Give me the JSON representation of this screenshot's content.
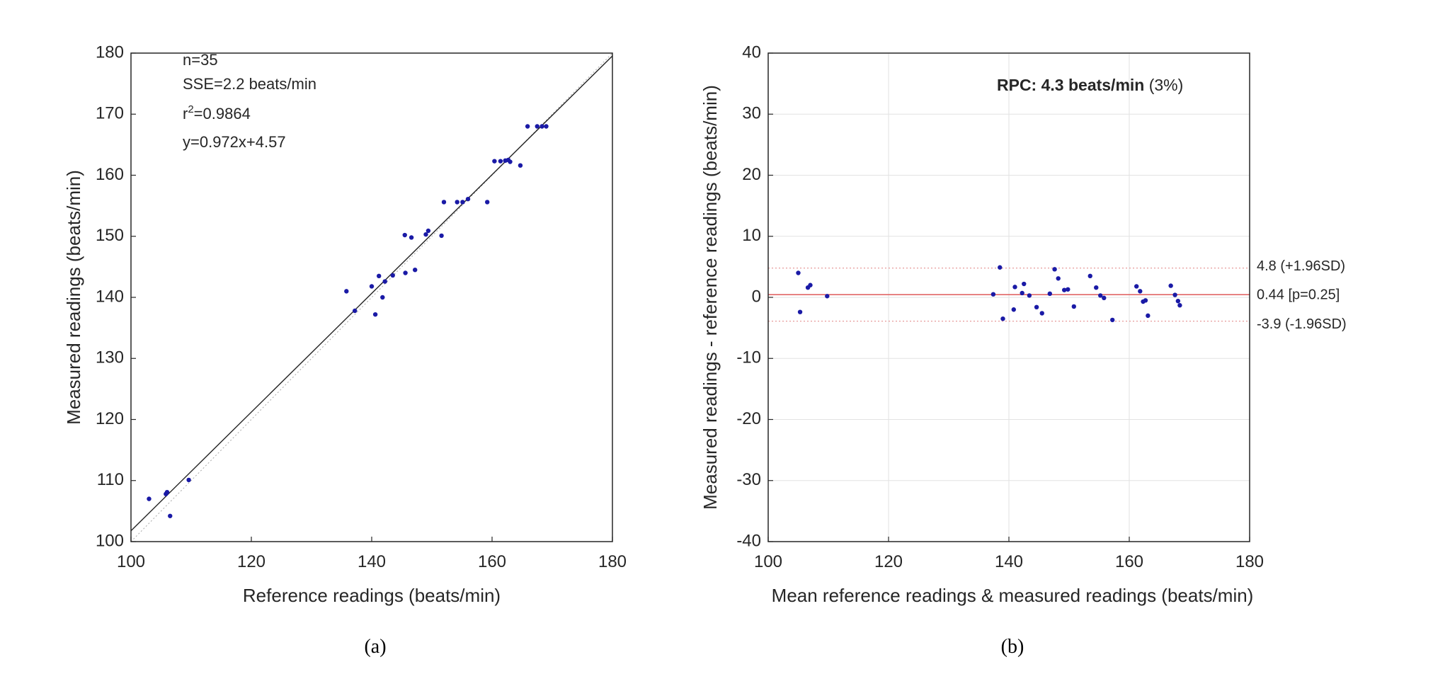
{
  "colors": {
    "points": "#1a1aa6",
    "fit_line": "#222222",
    "identity_line": "#a8a8a8",
    "mean_line": "#e06666",
    "limit_line": "#e79a9a",
    "grid": "#e2e2e2",
    "axis": "#262626"
  },
  "chart_data": [
    {
      "type": "scatter",
      "caption": "(a)",
      "xlabel": "Reference readings  (beats/min)",
      "ylabel": "Measured readings  (beats/min)",
      "xlim": [
        100,
        180
      ],
      "ylim": [
        100,
        180
      ],
      "xticks": [
        100,
        120,
        140,
        160,
        180
      ],
      "yticks": [
        100,
        110,
        120,
        130,
        140,
        150,
        160,
        170,
        180
      ],
      "grid": false,
      "stats": {
        "n": "n=35",
        "sse": "SSE=2.2 beats/min",
        "r2_prefix": "r",
        "r2_sup": "2",
        "r2_value": "=0.9864",
        "equation": "y=0.972x+4.57"
      },
      "fit": {
        "slope": 0.972,
        "intercept": 4.57
      },
      "identity_line": true,
      "points": [
        {
          "x": 103.0,
          "y": 107.0
        },
        {
          "x": 105.8,
          "y": 107.8
        },
        {
          "x": 106.0,
          "y": 108.1
        },
        {
          "x": 106.5,
          "y": 104.2
        },
        {
          "x": 109.6,
          "y": 110.1
        },
        {
          "x": 135.8,
          "y": 141.0
        },
        {
          "x": 137.2,
          "y": 137.8
        },
        {
          "x": 140.0,
          "y": 141.8
        },
        {
          "x": 140.6,
          "y": 137.2
        },
        {
          "x": 141.2,
          "y": 143.5
        },
        {
          "x": 141.8,
          "y": 140.0
        },
        {
          "x": 142.2,
          "y": 142.6
        },
        {
          "x": 143.5,
          "y": 143.6
        },
        {
          "x": 145.5,
          "y": 150.2
        },
        {
          "x": 145.6,
          "y": 144.0
        },
        {
          "x": 146.6,
          "y": 149.8
        },
        {
          "x": 147.2,
          "y": 144.5
        },
        {
          "x": 149.0,
          "y": 150.3
        },
        {
          "x": 149.4,
          "y": 150.9
        },
        {
          "x": 151.6,
          "y": 150.1
        },
        {
          "x": 152.0,
          "y": 155.6
        },
        {
          "x": 154.2,
          "y": 155.6
        },
        {
          "x": 155.1,
          "y": 155.6
        },
        {
          "x": 156.0,
          "y": 156.1
        },
        {
          "x": 159.2,
          "y": 155.6
        },
        {
          "x": 160.4,
          "y": 162.3
        },
        {
          "x": 161.4,
          "y": 162.3
        },
        {
          "x": 162.7,
          "y": 162.5
        },
        {
          "x": 163.0,
          "y": 162.2
        },
        {
          "x": 164.7,
          "y": 161.6
        },
        {
          "x": 165.9,
          "y": 168.0
        },
        {
          "x": 167.5,
          "y": 168.0
        },
        {
          "x": 168.3,
          "y": 168.0
        },
        {
          "x": 169.0,
          "y": 168.0
        },
        {
          "x": 162.2,
          "y": 162.4
        }
      ]
    },
    {
      "type": "scatter",
      "caption": "(b)",
      "xlabel": "Mean reference readings  & measured readings (beats/min)",
      "ylabel": "Measured readings - reference readings  (beats/min)",
      "xlim": [
        100,
        180
      ],
      "ylim": [
        -40,
        40
      ],
      "xticks": [
        100,
        120,
        140,
        160,
        180
      ],
      "yticks": [
        -40,
        -30,
        -20,
        -10,
        0,
        10,
        20,
        30,
        40
      ],
      "grid": true,
      "rpc_label": "RPC: 4.3 beats/min",
      "rpc_pct": "(3%)",
      "mean_line": {
        "y": 0.44,
        "label": "0.44 [p=0.25]"
      },
      "upper_limit": {
        "y": 4.8,
        "label": "4.8 (+1.96SD)"
      },
      "lower_limit": {
        "y": -3.9,
        "label": "-3.9 (-1.96SD)"
      },
      "points": [
        {
          "x": 105.0,
          "y": 4.0
        },
        {
          "x": 105.3,
          "y": -2.4
        },
        {
          "x": 106.6,
          "y": 1.6
        },
        {
          "x": 107.0,
          "y": 2.0
        },
        {
          "x": 109.8,
          "y": 0.2
        },
        {
          "x": 137.4,
          "y": 0.5
        },
        {
          "x": 138.5,
          "y": 4.9
        },
        {
          "x": 139.0,
          "y": -3.5
        },
        {
          "x": 140.8,
          "y": -2.0
        },
        {
          "x": 141.0,
          "y": 1.7
        },
        {
          "x": 142.2,
          "y": 0.7
        },
        {
          "x": 142.5,
          "y": 2.2
        },
        {
          "x": 143.4,
          "y": 0.3
        },
        {
          "x": 144.6,
          "y": -1.6
        },
        {
          "x": 145.5,
          "y": -2.6
        },
        {
          "x": 147.6,
          "y": 4.6
        },
        {
          "x": 148.2,
          "y": 3.1
        },
        {
          "x": 149.2,
          "y": 1.2
        },
        {
          "x": 149.8,
          "y": 1.3
        },
        {
          "x": 150.8,
          "y": -1.5
        },
        {
          "x": 153.5,
          "y": 3.5
        },
        {
          "x": 154.5,
          "y": 1.6
        },
        {
          "x": 155.2,
          "y": 0.3
        },
        {
          "x": 155.8,
          "y": -0.1
        },
        {
          "x": 157.2,
          "y": -3.7
        },
        {
          "x": 161.2,
          "y": 1.8
        },
        {
          "x": 161.8,
          "y": 1.0
        },
        {
          "x": 162.3,
          "y": -0.7
        },
        {
          "x": 162.7,
          "y": -0.5
        },
        {
          "x": 163.1,
          "y": -3.0
        },
        {
          "x": 166.9,
          "y": 1.9
        },
        {
          "x": 167.6,
          "y": 0.4
        },
        {
          "x": 168.1,
          "y": -0.6
        },
        {
          "x": 168.4,
          "y": -1.3
        },
        {
          "x": 146.8,
          "y": 0.6
        }
      ]
    }
  ]
}
